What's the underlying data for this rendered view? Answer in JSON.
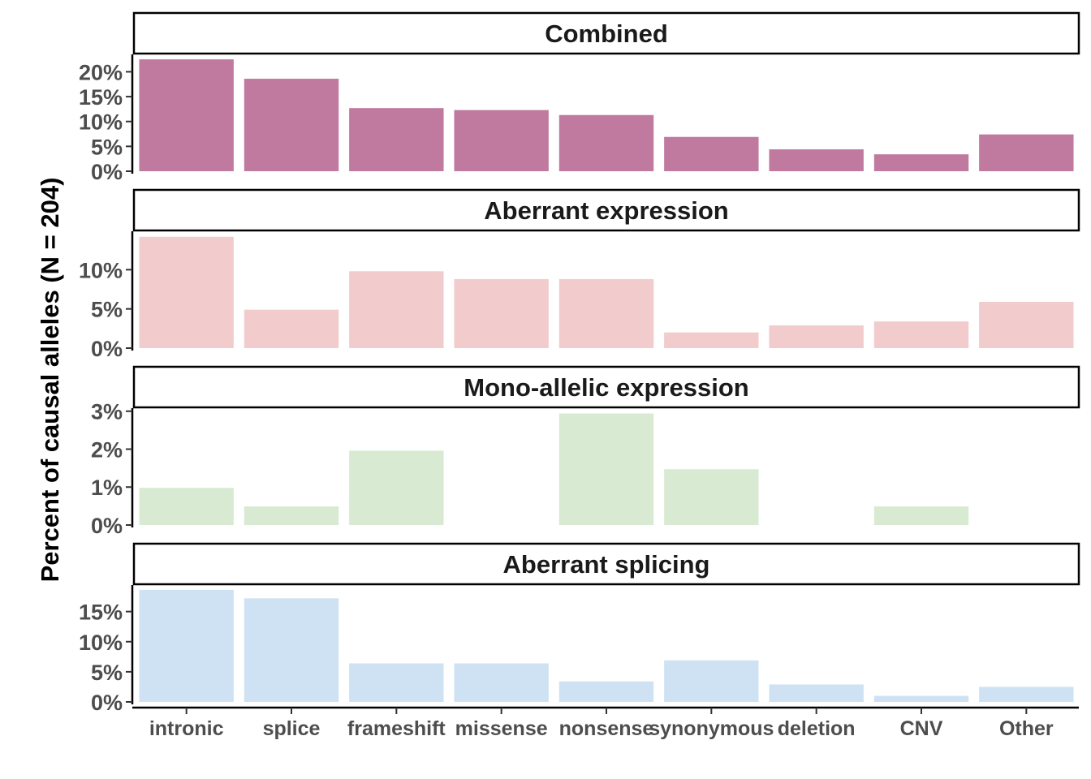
{
  "chart_data": {
    "type": "bar",
    "ylabel": "Percent of causal alleles (N = 204)",
    "xlabel": "",
    "categories": [
      "intronic",
      "splice",
      "frameshift",
      "missense",
      "nonsense",
      "synonymous",
      "deletion",
      "CNV",
      "Other"
    ],
    "grid": false,
    "panels": [
      {
        "title": "Combined",
        "color": "#c07aa0",
        "values": [
          22.5,
          18.6,
          12.7,
          12.3,
          11.3,
          6.9,
          4.4,
          3.4,
          7.4
        ],
        "ylim": [
          0,
          23.5
        ],
        "yticks": [
          0,
          5,
          10,
          15,
          20
        ],
        "ytick_labels": [
          "0%",
          "5%",
          "10%",
          "15%",
          "20%"
        ]
      },
      {
        "title": "Aberrant expression",
        "color": "#f2cccc",
        "values": [
          14.2,
          4.9,
          9.8,
          8.8,
          8.8,
          2.0,
          2.9,
          3.4,
          5.9
        ],
        "ylim": [
          0,
          14.9
        ],
        "yticks": [
          0,
          5,
          10
        ],
        "ytick_labels": [
          "0%",
          "5%",
          "10%"
        ]
      },
      {
        "title": "Mono-allelic expression",
        "color": "#d9ead3",
        "values": [
          0.98,
          0.49,
          1.96,
          0,
          2.94,
          1.47,
          0,
          0.49,
          0
        ],
        "ylim": [
          0,
          3.08
        ],
        "yticks": [
          0,
          1,
          2,
          3
        ],
        "ytick_labels": [
          "0%",
          "1%",
          "2%",
          "3%"
        ]
      },
      {
        "title": "Aberrant splicing",
        "color": "#cfe2f3",
        "values": [
          18.6,
          17.2,
          6.4,
          6.4,
          3.4,
          6.9,
          2.9,
          1.0,
          2.5
        ],
        "ylim": [
          0,
          19.4
        ],
        "yticks": [
          0,
          5,
          10,
          15
        ],
        "ytick_labels": [
          "0%",
          "5%",
          "10%",
          "15%"
        ]
      }
    ]
  }
}
